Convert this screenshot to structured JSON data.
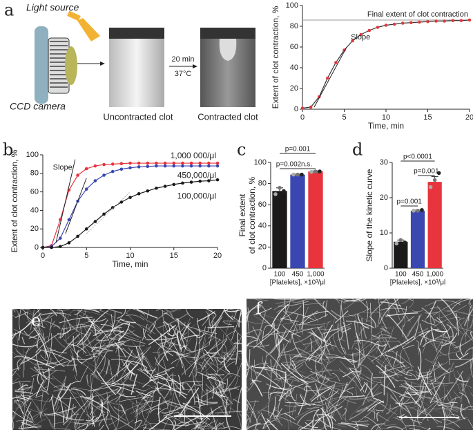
{
  "panel_labels": [
    "a",
    "b",
    "c",
    "d",
    "e",
    "f"
  ],
  "diagram": {
    "light_source": "Light source",
    "camera": "CCD camera",
    "uncontracted": "Uncontracted clot",
    "contracted": "Contracted clot",
    "time": "20 min",
    "temperature": "37°C"
  },
  "chart_data": [
    {
      "type": "line",
      "xlabel": "Time, min",
      "ylabel": "Extent of clot  contraction, %",
      "x": [
        0,
        1,
        2,
        3,
        4,
        5,
        6,
        7,
        8,
        9,
        10,
        11,
        12,
        13,
        14,
        15,
        16,
        17,
        18,
        19,
        20
      ],
      "values": [
        1,
        2,
        12,
        30,
        45,
        57,
        66,
        72,
        76,
        79,
        81,
        82,
        83,
        83.5,
        84,
        84.5,
        85,
        85,
        85.5,
        85.5,
        86
      ],
      "color": "#e0393e",
      "xlim": [
        0,
        20
      ],
      "ylim": [
        0,
        100
      ],
      "xticks": [
        0,
        5,
        10,
        15,
        20
      ],
      "yticks": [
        0,
        20,
        40,
        60,
        80,
        100
      ],
      "reference_line": {
        "value": 86,
        "label": "Final extent of clot contraction"
      },
      "slope_label": "Slope",
      "slope_lines": [
        {
          "x": [
            1.4,
            5.3
          ],
          "y": [
            2,
            60
          ]
        }
      ]
    },
    {
      "type": "line",
      "xlabel": "Time, min",
      "ylabel": "Extent of clot contraction, %",
      "x": [
        0,
        1,
        2,
        3,
        4,
        5,
        6,
        7,
        8,
        9,
        10,
        11,
        12,
        13,
        14,
        15,
        16,
        17,
        18,
        19,
        20
      ],
      "series": [
        {
          "name": "1,000 000/μl",
          "color": "#e8343c",
          "values": [
            0,
            2,
            30,
            62,
            78,
            85,
            88,
            89.5,
            90,
            90.5,
            91,
            91,
            91,
            91,
            91,
            91,
            91,
            91,
            91,
            91,
            91
          ]
        },
        {
          "name": "450,000/μl",
          "color": "#3a47b0",
          "values": [
            0,
            1,
            10,
            30,
            50,
            63,
            72,
            78,
            82,
            84.5,
            86,
            87,
            87.5,
            88,
            88,
            88,
            88,
            88,
            88,
            88,
            88
          ]
        },
        {
          "name": "100,000/μl",
          "color": "#1a1a1a",
          "values": [
            0,
            0,
            1,
            5,
            12,
            20,
            28,
            36,
            43,
            49,
            54,
            58,
            61,
            64,
            66,
            68,
            69.5,
            70.5,
            71.5,
            72,
            73
          ]
        }
      ],
      "xlim": [
        0,
        20
      ],
      "ylim": [
        0,
        100
      ],
      "xticks": [
        0,
        5,
        10,
        15,
        20
      ],
      "yticks": [
        0,
        20,
        40,
        60,
        80,
        100
      ],
      "slope_label": "Slope",
      "slope_lines": [
        {
          "x": [
            1.5,
            3.7
          ],
          "y": [
            5,
            95
          ]
        },
        {
          "x": [
            2.6,
            5
          ],
          "y": [
            15,
            75
          ]
        },
        {
          "x": [
            5,
            10
          ],
          "y": [
            15,
            60
          ]
        }
      ]
    },
    {
      "type": "bar",
      "xlabel": "[Platelets], ×10³/μl",
      "ylabel": [
        "Final extent",
        "of clot contraction, %"
      ],
      "categories": [
        "100",
        "450",
        "1,000"
      ],
      "values": [
        73,
        88.5,
        91.5
      ],
      "errors": [
        3,
        0.5,
        0.5
      ],
      "points": [
        [
          70,
          76,
          73
        ],
        [
          88.5,
          88.5,
          88.5
        ],
        [
          91,
          91.5,
          91.5
        ]
      ],
      "colors": [
        "#1a1a1a",
        "#3a47b0",
        "#e8343c"
      ],
      "ylim": [
        0,
        100
      ],
      "yticks": [
        0,
        20,
        40,
        60,
        80,
        100
      ],
      "comparisons": [
        "p=0.001",
        "p=0.002",
        "n.s."
      ]
    },
    {
      "type": "bar",
      "xlabel": "[Platelets], ×10³/μl",
      "ylabel": [
        "Slope of the kinetic curve"
      ],
      "categories": [
        "100",
        "450",
        "1,000"
      ],
      "values": [
        7.5,
        16.3,
        24.5
      ],
      "errors": [
        0.5,
        0.2,
        1.5
      ],
      "points": [
        [
          7,
          8,
          7.3
        ],
        [
          16.3,
          16.3,
          16.5
        ],
        [
          23,
          25,
          27
        ]
      ],
      "colors": [
        "#1a1a1a",
        "#3a47b0",
        "#e8343c"
      ],
      "ylim": [
        0,
        30
      ],
      "yticks": [
        0,
        10,
        20,
        30
      ],
      "comparisons": [
        "p<0.0001",
        "p=0.001",
        "p=0.001"
      ]
    }
  ]
}
